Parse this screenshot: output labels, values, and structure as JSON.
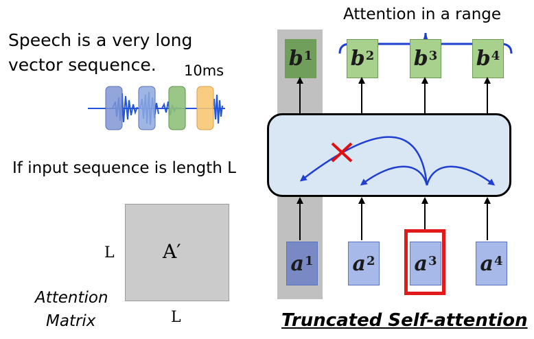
{
  "speech_text_line1": "Speech is a very long",
  "speech_text_line2": "vector sequence.",
  "frame_label": "10ms",
  "input_length_text": "If input sequence is length L",
  "matrix": {
    "side_label": "L",
    "bottom_label": "L",
    "center_label": "A′",
    "caption_line1": "Attention",
    "caption_line2": "Matrix"
  },
  "attention_range_text": "Attention in a range",
  "outputs": [
    {
      "base": "b",
      "sup": "1"
    },
    {
      "base": "b",
      "sup": "2"
    },
    {
      "base": "b",
      "sup": "3"
    },
    {
      "base": "b",
      "sup": "4"
    }
  ],
  "inputs": [
    {
      "base": "a",
      "sup": "1"
    },
    {
      "base": "a",
      "sup": "2"
    },
    {
      "base": "a",
      "sup": "3"
    },
    {
      "base": "a",
      "sup": "4"
    }
  ],
  "title": "Truncated Self-attention",
  "colors": {
    "frame_blue": "#7f96d6",
    "frame_lightblue": "#8ea9e0",
    "frame_green": "#8fc17a",
    "frame_orange": "#f7c873",
    "waveform": "#2255dd",
    "arc_blue": "#1f3fd1",
    "cross_red": "#e01010",
    "highlight_red": "#e11b1b"
  }
}
